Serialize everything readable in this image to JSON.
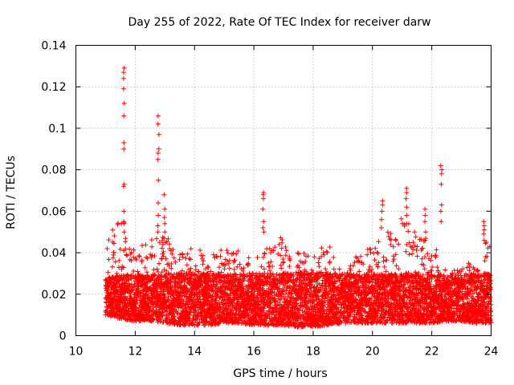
{
  "chart_data": {
    "type": "scatter",
    "title": "Day 255 of 2022, Rate Of TEC Index for receiver darw",
    "xlabel": "GPS time / hours",
    "ylabel": "ROTI / TECUs",
    "xlim": [
      10,
      24
    ],
    "ylim": [
      0,
      0.14
    ],
    "x_ticks": [
      10,
      12,
      14,
      16,
      18,
      20,
      22,
      24
    ],
    "x_tick_labels": [
      "10",
      "12",
      "14",
      "16",
      "18",
      "20",
      "22",
      "24"
    ],
    "y_ticks": [
      0,
      0.02,
      0.04,
      0.06,
      0.08,
      0.1,
      0.12,
      0.14
    ],
    "y_tick_labels": [
      "0",
      "0.02",
      "0.04",
      "0.06",
      "0.08",
      "0.1",
      "0.12",
      "0.14"
    ],
    "grid": true,
    "legend": "none",
    "marker": "plus",
    "series": [
      {
        "color": "#ff0000",
        "spikes": [
          {
            "x": 11.62,
            "values": [
              0.129,
              0.127,
              0.124,
              0.119,
              0.112,
              0.106,
              0.093,
              0.09,
              0.073,
              0.072,
              0.06,
              0.055,
              0.05
            ]
          },
          {
            "x": 12.78,
            "values": [
              0.106,
              0.102,
              0.097,
              0.09,
              0.088,
              0.085,
              0.075,
              0.064,
              0.058,
              0.053,
              0.05
            ]
          },
          {
            "x": 12.98,
            "values": [
              0.068,
              0.061,
              0.057,
              0.054,
              0.05,
              0.047
            ]
          },
          {
            "x": 16.32,
            "values": [
              0.069,
              0.068,
              0.066,
              0.061,
              0.055,
              0.052,
              0.05
            ]
          },
          {
            "x": 20.32,
            "values": [
              0.065,
              0.063,
              0.06,
              0.056,
              0.052
            ]
          },
          {
            "x": 21.15,
            "values": [
              0.071,
              0.069,
              0.066,
              0.062,
              0.058,
              0.054
            ]
          },
          {
            "x": 21.78,
            "values": [
              0.061,
              0.058,
              0.055,
              0.05,
              0.046
            ]
          },
          {
            "x": 22.32,
            "values": [
              0.082,
              0.08,
              0.078,
              0.073,
              0.063,
              0.06,
              0.055
            ]
          },
          {
            "x": 23.75,
            "values": [
              0.055,
              0.053,
              0.051,
              0.049,
              0.046
            ]
          }
        ],
        "envelope": [
          {
            "x": 11.0,
            "min": 0.01,
            "max": 0.044
          },
          {
            "x": 11.5,
            "min": 0.008,
            "max": 0.06
          },
          {
            "x": 12.0,
            "min": 0.007,
            "max": 0.04
          },
          {
            "x": 12.5,
            "min": 0.007,
            "max": 0.048
          },
          {
            "x": 13.0,
            "min": 0.006,
            "max": 0.05
          },
          {
            "x": 13.5,
            "min": 0.005,
            "max": 0.04
          },
          {
            "x": 14.0,
            "min": 0.005,
            "max": 0.045
          },
          {
            "x": 14.5,
            "min": 0.005,
            "max": 0.04
          },
          {
            "x": 15.0,
            "min": 0.006,
            "max": 0.044
          },
          {
            "x": 15.5,
            "min": 0.006,
            "max": 0.043
          },
          {
            "x": 16.0,
            "min": 0.005,
            "max": 0.036
          },
          {
            "x": 16.5,
            "min": 0.005,
            "max": 0.044
          },
          {
            "x": 17.0,
            "min": 0.005,
            "max": 0.048
          },
          {
            "x": 17.5,
            "min": 0.004,
            "max": 0.04
          },
          {
            "x": 18.0,
            "min": 0.004,
            "max": 0.04
          },
          {
            "x": 18.5,
            "min": 0.005,
            "max": 0.045
          },
          {
            "x": 19.0,
            "min": 0.006,
            "max": 0.03
          },
          {
            "x": 19.5,
            "min": 0.006,
            "max": 0.04
          },
          {
            "x": 20.0,
            "min": 0.006,
            "max": 0.044
          },
          {
            "x": 20.5,
            "min": 0.006,
            "max": 0.052
          },
          {
            "x": 21.0,
            "min": 0.006,
            "max": 0.06
          },
          {
            "x": 21.5,
            "min": 0.006,
            "max": 0.052
          },
          {
            "x": 22.0,
            "min": 0.006,
            "max": 0.048
          },
          {
            "x": 22.5,
            "min": 0.007,
            "max": 0.03
          },
          {
            "x": 23.0,
            "min": 0.007,
            "max": 0.034
          },
          {
            "x": 23.5,
            "min": 0.006,
            "max": 0.036
          },
          {
            "x": 24.0,
            "min": 0.006,
            "max": 0.05
          }
        ],
        "typical_level": 0.015
      }
    ]
  }
}
